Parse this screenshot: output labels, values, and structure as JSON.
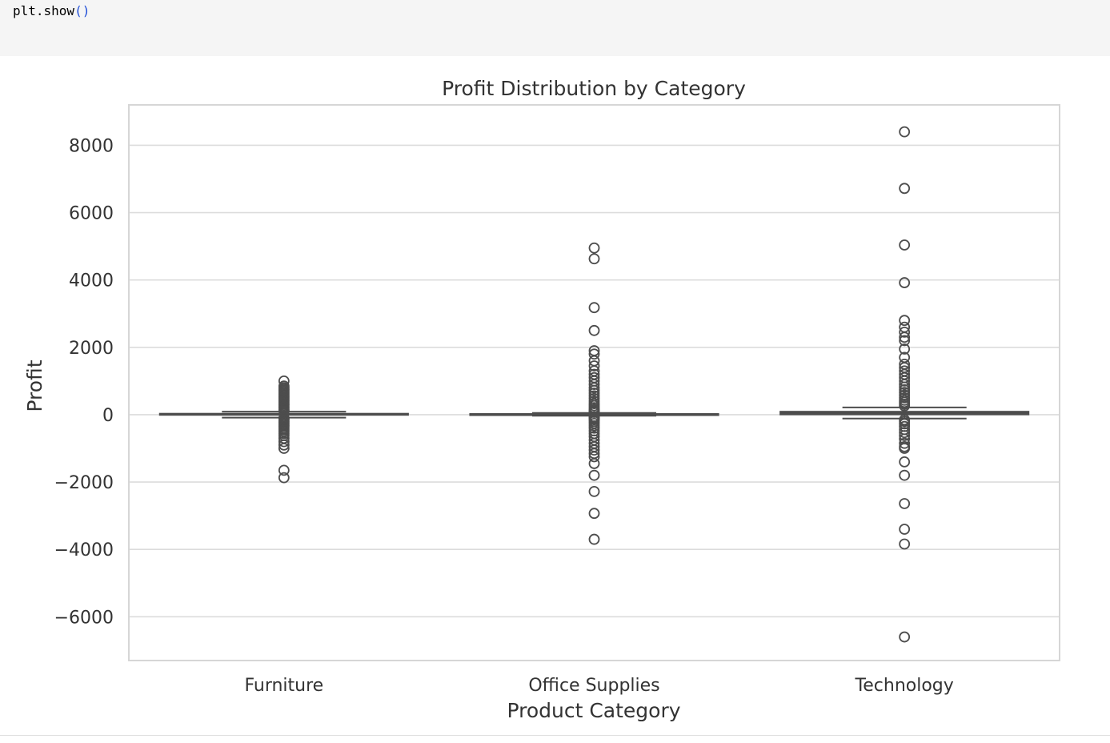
{
  "code": {
    "text": "plt.show",
    "parens": "()"
  },
  "colors": {
    "box_line": "#4d4d4d",
    "grid": "#dcdcdc",
    "frame": "#d6d6d6",
    "text": "#333333",
    "code_bg": "#f5f5f5"
  },
  "chart_data": {
    "type": "box",
    "title": "Profit Distribution by Category",
    "xlabel": "Product Category",
    "ylabel": "Profit",
    "categories": [
      "Furniture",
      "Office Supplies",
      "Technology"
    ],
    "ylim": [
      -7300,
      9200
    ],
    "yticks": [
      8000,
      6000,
      4000,
      2000,
      0,
      -2000,
      -4000,
      -6000
    ],
    "ytick_labels": [
      "8000",
      "6000",
      "4000",
      "2000",
      "0",
      "−2000",
      "−4000",
      "−6000"
    ],
    "grid": true,
    "boxes": [
      {
        "category": "Furniture",
        "q1": 1.5,
        "median": 10,
        "q3": 30,
        "whisker_low": -88,
        "whisker_high": 90,
        "outliers": [
          1000,
          850,
          800,
          760,
          720,
          680,
          640,
          600,
          560,
          520,
          480,
          440,
          400,
          360,
          320,
          280,
          240,
          200,
          160,
          130,
          110,
          -100,
          -120,
          -150,
          -190,
          -230,
          -270,
          -310,
          -350,
          -400,
          -450,
          -500,
          -560,
          -620,
          -700,
          -800,
          -900,
          -1000,
          -1650,
          -1870
        ]
      },
      {
        "category": "Office Supplies",
        "q1": 2,
        "median": 7,
        "q3": 22,
        "whisker_low": -30,
        "whisker_high": 53,
        "outliers": [
          4950,
          4630,
          3180,
          2500,
          1900,
          1800,
          1600,
          1450,
          1300,
          1200,
          1100,
          1000,
          900,
          800,
          720,
          640,
          560,
          480,
          400,
          330,
          270,
          210,
          160,
          120,
          90,
          70,
          -60,
          -80,
          -110,
          -150,
          -200,
          -260,
          -330,
          -400,
          -480,
          -560,
          -650,
          -750,
          -850,
          -950,
          -1050,
          -1150,
          -1250,
          -1450,
          -1800,
          -2280,
          -2930,
          -3700
        ]
      },
      {
        "category": "Technology",
        "q1": 8,
        "median": 25,
        "q3": 90,
        "whisker_low": -115,
        "whisker_high": 215,
        "outliers": [
          8400,
          6720,
          5040,
          3920,
          2800,
          2600,
          2450,
          2300,
          2200,
          1950,
          1700,
          1500,
          1400,
          1300,
          1200,
          1100,
          1000,
          900,
          820,
          740,
          660,
          580,
          500,
          430,
          370,
          310,
          260,
          -150,
          -200,
          -270,
          -350,
          -440,
          -530,
          -620,
          -720,
          -850,
          -950,
          -1000,
          -1400,
          -1800,
          -2640,
          -3400,
          -3840,
          -6600
        ]
      }
    ]
  }
}
